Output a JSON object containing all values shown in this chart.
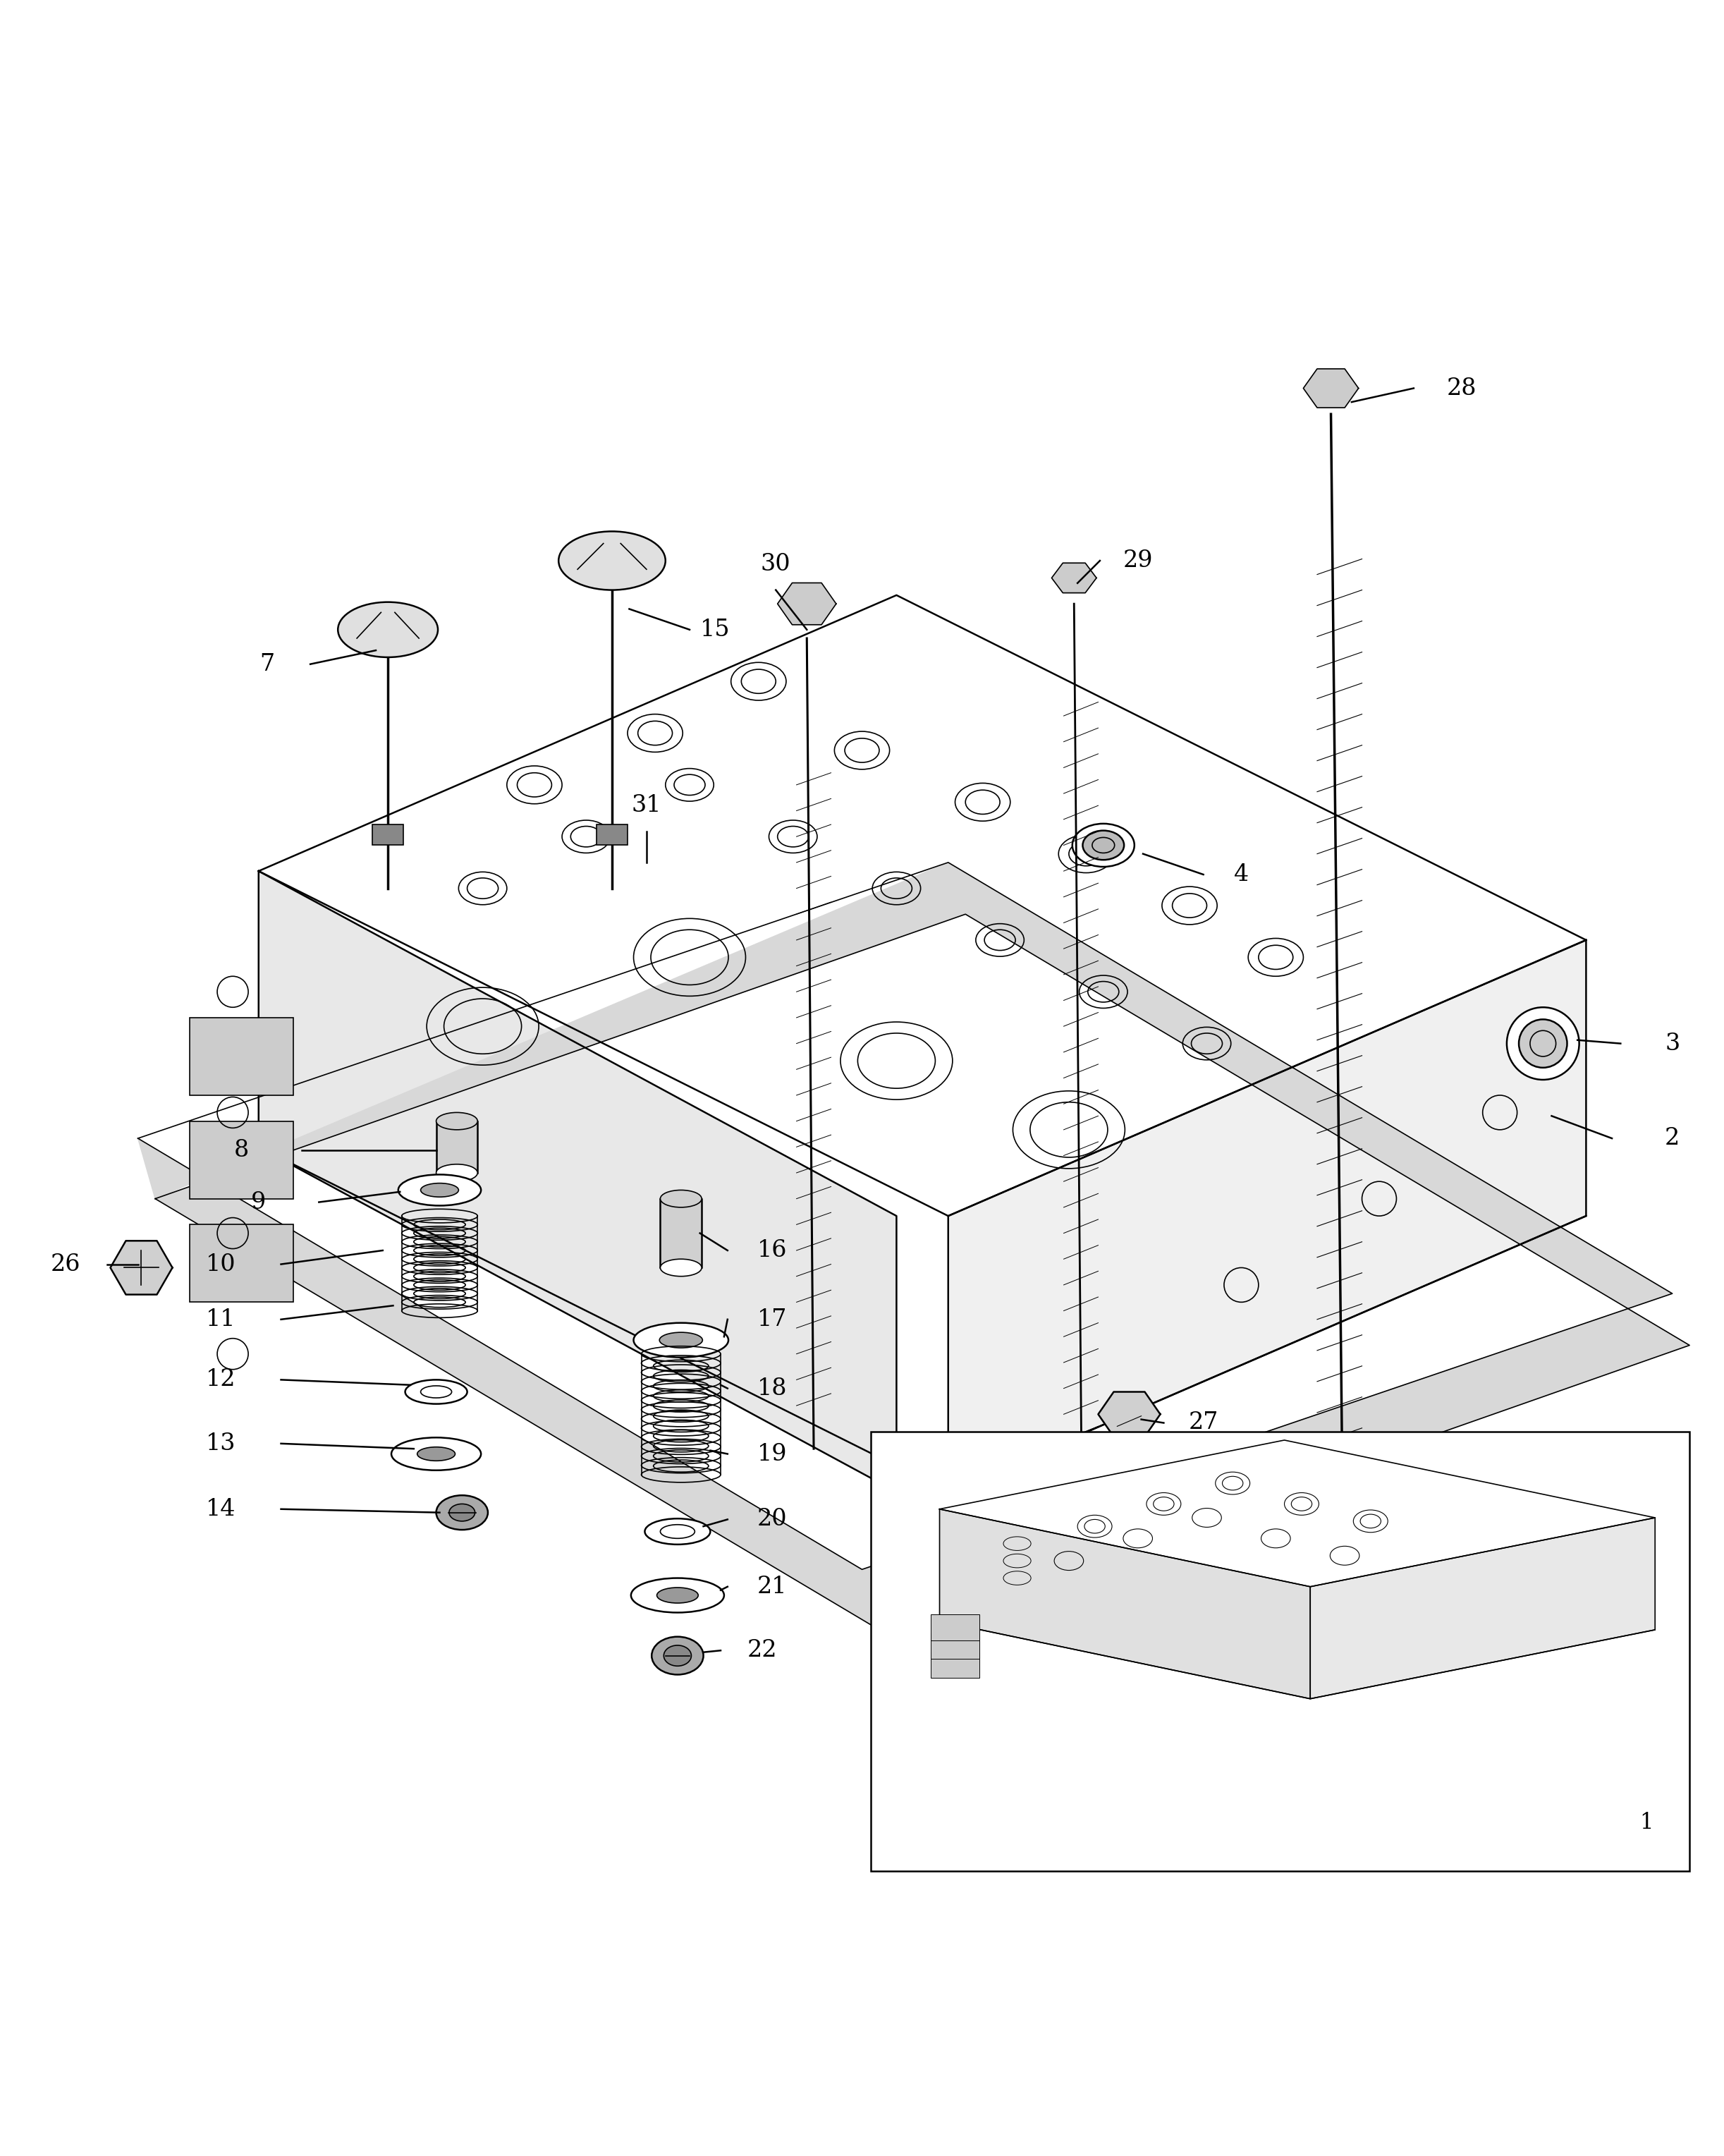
{
  "bg_color": "#ffffff",
  "line_color": "#000000",
  "fig_width": 24.45,
  "fig_height": 30.57
}
